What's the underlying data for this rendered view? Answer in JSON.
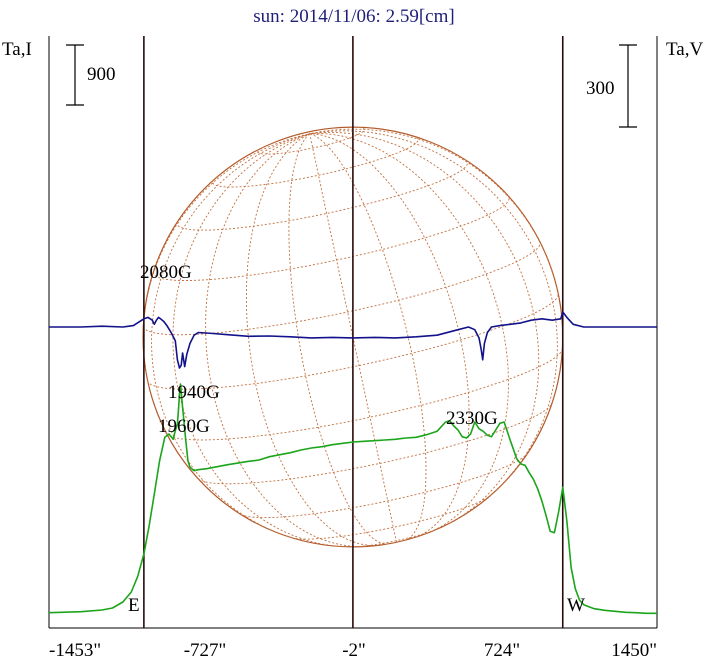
{
  "chart_data": {
    "type": "line",
    "title": "sun: 2014/11/06: 2.59[cm]",
    "left_axis_label": "Ta,I",
    "right_axis_label": "Ta,V",
    "x_ticks": [
      "-1453\"",
      "-727\"",
      "-2\"",
      "724\"",
      "1450\""
    ],
    "x_tick_values": [
      -1453,
      -727,
      -2,
      724,
      1450
    ],
    "xlim": [
      -1453,
      1450
    ],
    "limb_labels": {
      "east": "E",
      "west": "W"
    },
    "limb_positions": [
      -1000,
      -2,
      1000
    ],
    "scale_bars": {
      "intensity": "900",
      "polarization": "300"
    },
    "annotations": [
      {
        "text": "2080G",
        "x": -960,
        "level": 285
      },
      {
        "text": "1940G",
        "x": -727,
        "level": 383
      },
      {
        "text": "1960G",
        "x": -920,
        "level": 417
      },
      {
        "text": "2330G",
        "x": 620,
        "level": 410
      }
    ],
    "series": [
      {
        "name": "Ta,I",
        "color": "#1ba51b",
        "x": [
          -1453,
          -1300,
          -1200,
          -1150,
          -1100,
          -1060,
          -1030,
          -1000,
          -975,
          -950,
          -925,
          -900,
          -880,
          -860,
          -850,
          -840,
          -835,
          -830,
          -825,
          -815,
          -800,
          -790,
          -780,
          -760,
          -740,
          -700,
          -600,
          -500,
          -450,
          -400,
          -350,
          -300,
          -250,
          -200,
          -150,
          -100,
          -50,
          0,
          50,
          100,
          150,
          200,
          250,
          300,
          350,
          400,
          420,
          440,
          460,
          480,
          500,
          520,
          540,
          560,
          580,
          600,
          620,
          640,
          660,
          680,
          700,
          720,
          750,
          780,
          800,
          820,
          840,
          860,
          880,
          900,
          920,
          940,
          960,
          980,
          1000,
          1020,
          1040,
          1060,
          1080,
          1100,
          1150,
          1200,
          1250,
          1300,
          1350,
          1400,
          1450
        ],
        "y": [
          20,
          35,
          60,
          90,
          180,
          330,
          560,
          900,
          1320,
          1800,
          2300,
          2650,
          2700,
          2620,
          2750,
          2850,
          3050,
          3300,
          3450,
          3100,
          2600,
          2300,
          2200,
          2150,
          2165,
          2180,
          2240,
          2290,
          2310,
          2360,
          2390,
          2420,
          2460,
          2490,
          2510,
          2540,
          2560,
          2580,
          2590,
          2600,
          2610,
          2620,
          2640,
          2650,
          2690,
          2740,
          2810,
          2880,
          2900,
          2820,
          2760,
          2660,
          2640,
          2700,
          2880,
          2780,
          2740,
          2680,
          2660,
          2760,
          2860,
          2880,
          2600,
          2330,
          2250,
          2230,
          2120,
          2020,
          1880,
          1700,
          1480,
          1240,
          1220,
          1530,
          1900,
          1390,
          700,
          380,
          210,
          140,
          80,
          55,
          40,
          25,
          20,
          10,
          10
        ]
      },
      {
        "name": "Ta,V",
        "color": "#12128c",
        "x": [
          -1453,
          -1300,
          -1200,
          -1100,
          -1050,
          -1000,
          -980,
          -960,
          -950,
          -940,
          -930,
          -920,
          -905,
          -890,
          -870,
          -850,
          -840,
          -830,
          -822,
          -815,
          -805,
          -795,
          -780,
          -760,
          -740,
          -700,
          -600,
          -500,
          -400,
          -300,
          -200,
          -100,
          -2,
          100,
          200,
          300,
          400,
          500,
          550,
          580,
          600,
          610,
          618,
          626,
          640,
          660,
          700,
          750,
          800,
          850,
          900,
          950,
          990,
          1000,
          1020,
          1050,
          1100,
          1200,
          1300,
          1400,
          1450
        ],
        "y": [
          0,
          0,
          3,
          0,
          5,
          30,
          35,
          25,
          10,
          25,
          35,
          30,
          20,
          5,
          -20,
          -50,
          -120,
          -150,
          -140,
          -95,
          -145,
          -100,
          -60,
          -30,
          -20,
          -22,
          -28,
          -34,
          -33,
          -36,
          -40,
          -38,
          -40,
          -38,
          -40,
          -36,
          -30,
          -10,
          0,
          -10,
          -40,
          -80,
          -120,
          -60,
          -20,
          0,
          5,
          10,
          15,
          25,
          30,
          25,
          30,
          55,
          35,
          10,
          0,
          0,
          0,
          0,
          0
        ]
      }
    ]
  },
  "colors": {
    "background": "#ffffff",
    "sphere_outline": "#b35a2a",
    "sphere_grid": "#c2703f",
    "limb_lines": "#2a0b0b",
    "title": "#1f1f7a"
  }
}
